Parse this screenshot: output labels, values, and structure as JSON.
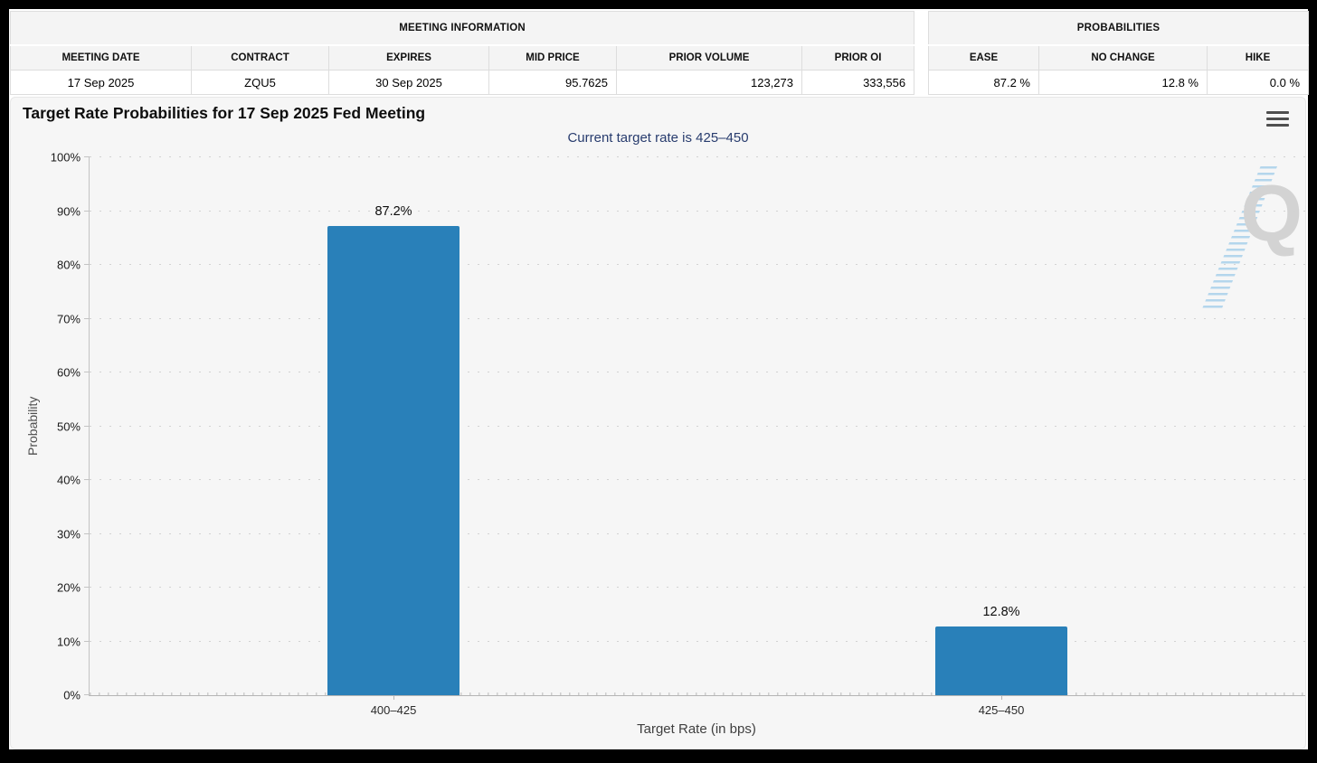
{
  "meeting_info": {
    "title": "MEETING INFORMATION",
    "columns": [
      "MEETING DATE",
      "CONTRACT",
      "EXPIRES",
      "MID PRICE",
      "PRIOR VOLUME",
      "PRIOR OI"
    ],
    "values": [
      "17 Sep 2025",
      "ZQU5",
      "30 Sep 2025",
      "95.7625",
      "123,273",
      "333,556"
    ]
  },
  "probabilities": {
    "title": "PROBABILITIES",
    "columns": [
      "EASE",
      "NO CHANGE",
      "HIKE"
    ],
    "values": [
      "87.2 %",
      "12.8 %",
      "0.0 %"
    ]
  },
  "chart_data": {
    "type": "bar",
    "title": "Target Rate Probabilities for 17 Sep 2025 Fed Meeting",
    "subtitle": "Current target rate is 425–450",
    "categories": [
      "400–425",
      "425–450"
    ],
    "values": [
      87.2,
      12.8
    ],
    "value_labels": [
      "87.2%",
      "12.8%"
    ],
    "xlabel": "Target Rate (in bps)",
    "ylabel": "Probability",
    "ylim": [
      0,
      100
    ],
    "ytick_step": 10,
    "ytick_labels": [
      "0%",
      "10%",
      "20%",
      "30%",
      "40%",
      "50%",
      "60%",
      "70%",
      "80%",
      "90%",
      "100%"
    ],
    "grid": "horizontal dotted",
    "legend": "none",
    "bar_color": "#2980b9",
    "subtitle_color": "#283c6e"
  },
  "icons": {
    "menu": "hamburger-menu-icon"
  },
  "watermark": {
    "letter": "Q"
  }
}
